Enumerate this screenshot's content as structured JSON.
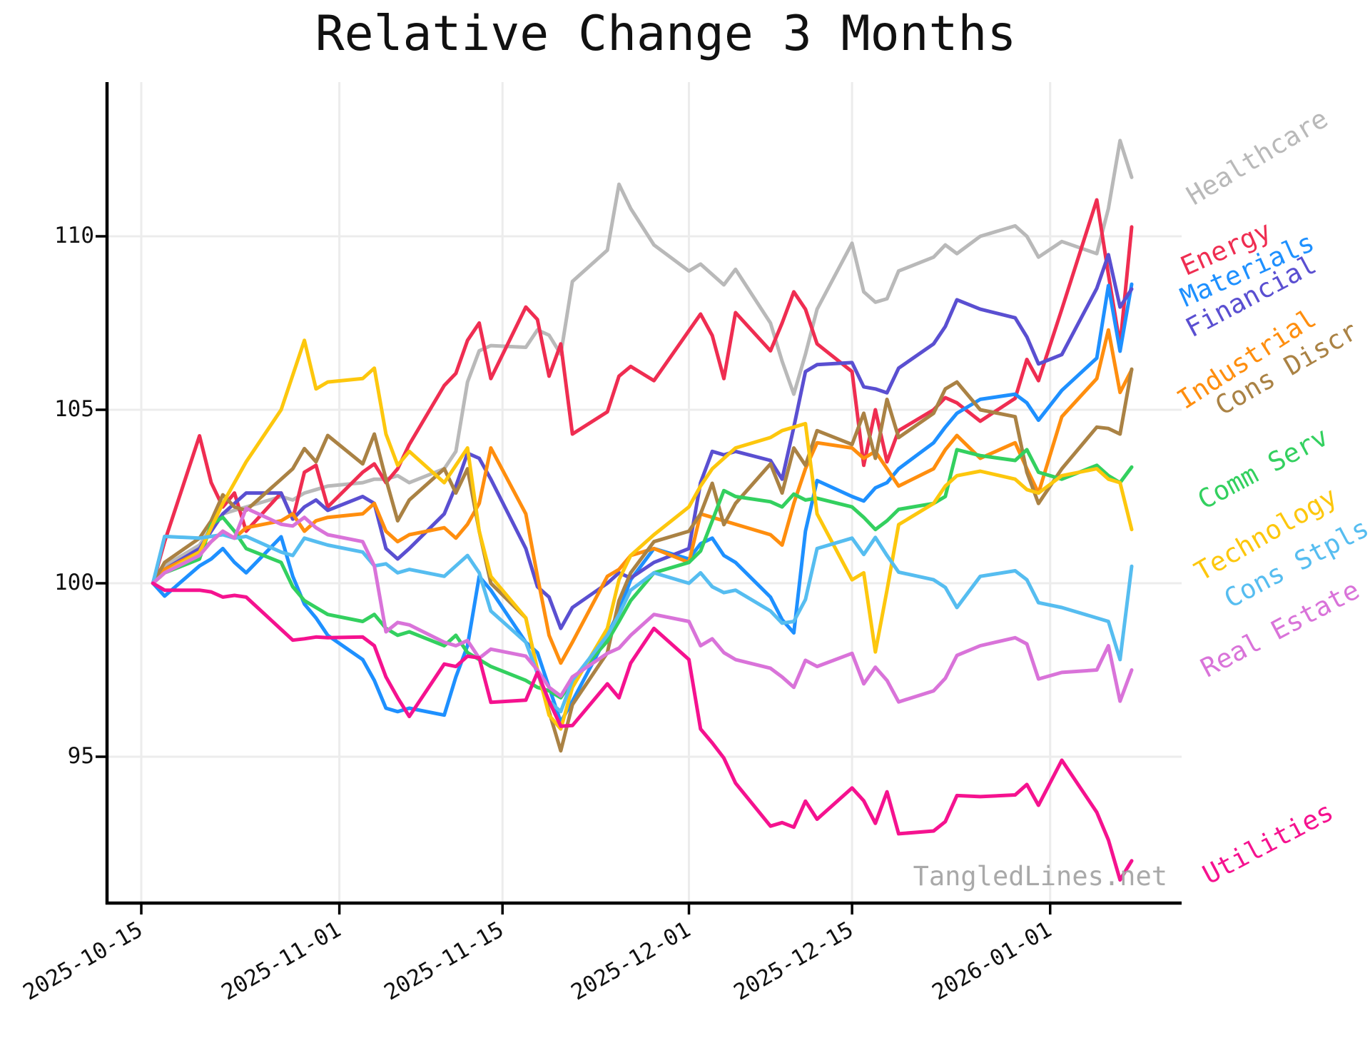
{
  "title": "Relative Change 3 Months",
  "watermark": "TangledLines.net",
  "chart_data": {
    "type": "line",
    "title": "Relative Change 3 Months",
    "xlabel": "",
    "ylabel": "",
    "grid": true,
    "legend_position": "right-rotated-labels-at-line-ends",
    "x_tick_labels": [
      "2025-10-15",
      "2025-11-01",
      "2025-11-15",
      "2025-12-01",
      "2025-12-15",
      "2026-01-01"
    ],
    "y_ticks": [
      95,
      100,
      105,
      110
    ],
    "xlim": [
      "2025-10-12",
      "2026-01-13"
    ],
    "ylim": [
      90.8,
      114.4
    ],
    "baseline_value": 100,
    "dates": [
      "2025-10-16",
      "2025-10-17",
      "2025-10-20",
      "2025-10-21",
      "2025-10-22",
      "2025-10-23",
      "2025-10-24",
      "2025-10-27",
      "2025-10-28",
      "2025-10-29",
      "2025-10-30",
      "2025-10-31",
      "2025-11-03",
      "2025-11-04",
      "2025-11-05",
      "2025-11-06",
      "2025-11-07",
      "2025-11-10",
      "2025-11-11",
      "2025-11-12",
      "2025-11-13",
      "2025-11-14",
      "2025-11-17",
      "2025-11-18",
      "2025-11-19",
      "2025-11-20",
      "2025-11-21",
      "2025-11-24",
      "2025-11-25",
      "2025-11-26",
      "2025-11-28",
      "2025-12-01",
      "2025-12-02",
      "2025-12-03",
      "2025-12-04",
      "2025-12-05",
      "2025-12-08",
      "2025-12-09",
      "2025-12-10",
      "2025-12-11",
      "2025-12-12",
      "2025-12-15",
      "2025-12-16",
      "2025-12-17",
      "2025-12-18",
      "2025-12-19",
      "2025-12-22",
      "2025-12-23",
      "2025-12-24",
      "2025-12-26",
      "2025-12-29",
      "2025-12-30",
      "2025-12-31",
      "2026-01-02",
      "2026-01-05",
      "2026-01-06",
      "2026-01-07",
      "2026-01-08"
    ],
    "series": [
      {
        "name": "healthcare",
        "label": "Healthcare",
        "color": "#b9b9b9",
        "values": [
          100,
          100.5,
          101.1,
          101.6,
          102.0,
          102.1,
          102.2,
          102.5,
          102.4,
          102.6,
          102.7,
          102.8,
          102.9,
          103.0,
          103.0,
          103.1,
          102.9,
          103.3,
          103.8,
          105.8,
          106.7,
          106.85,
          106.8,
          107.3,
          107.15,
          106.6,
          108.7,
          109.6,
          111.5,
          110.8,
          109.75,
          109.0,
          109.2,
          108.9,
          108.6,
          109.05,
          107.5,
          106.4,
          105.45,
          106.6,
          107.9,
          109.8,
          108.4,
          108.1,
          108.2,
          109.0,
          109.4,
          109.75,
          109.5,
          110.0,
          110.3,
          110.0,
          109.4,
          109.85,
          109.5,
          110.8,
          112.76,
          111.7
        ]
      },
      {
        "name": "energy",
        "label": "Energy",
        "color": "#ef2d51",
        "values": [
          100,
          101.2,
          104.25,
          102.9,
          102.2,
          102.6,
          101.5,
          102.6,
          101.85,
          103.2,
          103.4,
          102.2,
          103.2,
          103.44,
          102.9,
          103.3,
          104.0,
          105.7,
          106.05,
          107.0,
          107.5,
          105.9,
          107.96,
          107.6,
          105.97,
          106.9,
          104.3,
          104.94,
          105.97,
          106.25,
          105.84,
          107.28,
          107.76,
          107.14,
          105.9,
          107.8,
          106.7,
          107.5,
          108.4,
          107.9,
          106.9,
          106.1,
          103.4,
          105.0,
          103.5,
          104.4,
          105.0,
          105.35,
          105.2,
          104.67,
          105.33,
          106.45,
          105.84,
          107.9,
          111.05,
          108.9,
          106.86,
          110.27
        ]
      },
      {
        "name": "materials",
        "label": "Materials",
        "color": "#1e90ff",
        "values": [
          100,
          99.63,
          100.5,
          100.7,
          101.0,
          100.6,
          100.3,
          101.34,
          100.2,
          99.4,
          99.0,
          98.5,
          97.8,
          97.2,
          96.4,
          96.3,
          96.4,
          96.2,
          97.3,
          98.2,
          100.2,
          99.8,
          98.3,
          98.0,
          97.0,
          96.0,
          96.6,
          98.5,
          99.2,
          100.1,
          101.0,
          100.7,
          101.14,
          101.3,
          100.8,
          100.6,
          99.6,
          98.95,
          98.57,
          101.5,
          102.96,
          102.5,
          102.37,
          102.75,
          102.9,
          103.3,
          104.05,
          104.5,
          104.9,
          105.3,
          105.45,
          105.2,
          104.7,
          105.56,
          106.49,
          108.58,
          106.69,
          108.62
        ]
      },
      {
        "name": "financial",
        "label": "Financial",
        "color": "#5a4fd1",
        "values": [
          100,
          100.4,
          101.0,
          101.5,
          102.0,
          102.3,
          102.6,
          102.6,
          101.85,
          102.2,
          102.4,
          102.1,
          102.5,
          102.3,
          101.0,
          100.7,
          101.0,
          102.0,
          102.8,
          103.75,
          103.6,
          103.0,
          101.0,
          99.9,
          99.6,
          98.7,
          99.3,
          100.0,
          100.3,
          100.15,
          100.6,
          101.0,
          102.9,
          103.8,
          103.7,
          103.8,
          103.54,
          103.0,
          104.5,
          106.1,
          106.3,
          106.36,
          105.66,
          105.6,
          105.49,
          106.2,
          106.9,
          107.4,
          108.17,
          107.9,
          107.65,
          107.1,
          106.32,
          106.59,
          108.5,
          109.47,
          107.96,
          108.48
        ]
      },
      {
        "name": "industrial",
        "label": "Industrial",
        "color": "#ff8e0e",
        "values": [
          100,
          100.4,
          100.9,
          101.2,
          101.5,
          101.3,
          101.6,
          101.8,
          102.0,
          101.5,
          101.8,
          101.9,
          102.0,
          102.3,
          101.5,
          101.2,
          101.4,
          101.6,
          101.3,
          101.7,
          102.3,
          103.9,
          102.0,
          100.2,
          98.5,
          97.7,
          98.3,
          100.2,
          100.4,
          100.8,
          101.0,
          100.6,
          102.0,
          101.9,
          101.8,
          101.7,
          101.4,
          101.1,
          102.3,
          103.3,
          104.05,
          103.9,
          103.6,
          103.8,
          103.3,
          102.8,
          103.3,
          103.85,
          104.26,
          103.6,
          104.05,
          103.3,
          102.6,
          104.8,
          105.9,
          107.3,
          105.5,
          106.15
        ]
      },
      {
        "name": "cons-discr",
        "label": "Cons Discr",
        "color": "#aa8244",
        "values": [
          100,
          100.6,
          101.3,
          101.8,
          102.55,
          102.2,
          102.1,
          103.0,
          103.3,
          103.88,
          103.5,
          104.26,
          103.44,
          104.3,
          103.0,
          101.8,
          102.4,
          103.3,
          102.6,
          103.3,
          101.5,
          100.0,
          99.0,
          97.5,
          96.3,
          95.17,
          96.5,
          98.0,
          99.5,
          100.3,
          101.2,
          101.5,
          102.0,
          102.88,
          101.69,
          102.3,
          103.44,
          102.6,
          103.9,
          103.4,
          104.4,
          104.0,
          104.9,
          103.6,
          105.3,
          104.2,
          104.9,
          105.6,
          105.8,
          105.0,
          104.8,
          103.2,
          102.3,
          103.3,
          104.5,
          104.46,
          104.3,
          106.17
        ]
      },
      {
        "name": "comm-serv",
        "label": "Comm Serv",
        "color": "#33d05f",
        "values": [
          100,
          100.3,
          100.7,
          101.7,
          101.9,
          101.5,
          101.0,
          100.6,
          99.9,
          99.5,
          99.3,
          99.1,
          98.9,
          99.1,
          98.7,
          98.5,
          98.6,
          98.2,
          98.5,
          98.0,
          97.8,
          97.6,
          97.2,
          97.0,
          96.9,
          96.7,
          97.2,
          98.33,
          98.9,
          99.5,
          100.3,
          100.6,
          100.93,
          101.8,
          102.67,
          102.5,
          102.35,
          102.2,
          102.57,
          102.4,
          102.45,
          102.2,
          101.9,
          101.55,
          101.8,
          102.13,
          102.3,
          102.5,
          103.85,
          103.68,
          103.54,
          103.85,
          103.2,
          103.0,
          103.4,
          103.1,
          102.9,
          103.35
        ]
      },
      {
        "name": "technology",
        "label": "Technology",
        "color": "#fdc70d",
        "values": [
          100,
          100.3,
          100.9,
          101.6,
          102.3,
          102.9,
          103.5,
          105.0,
          106.0,
          107.0,
          105.6,
          105.8,
          105.9,
          106.2,
          104.3,
          103.4,
          103.8,
          102.9,
          103.4,
          103.9,
          101.5,
          100.2,
          99.0,
          97.5,
          96.2,
          95.8,
          97.0,
          98.7,
          100.1,
          100.8,
          101.4,
          102.2,
          102.8,
          103.3,
          103.6,
          103.9,
          104.2,
          104.4,
          104.5,
          104.6,
          102.0,
          100.1,
          100.3,
          98.02,
          99.8,
          101.69,
          102.3,
          102.8,
          103.1,
          103.23,
          103.0,
          102.7,
          102.6,
          103.1,
          103.3,
          103.0,
          102.9,
          101.55
        ]
      },
      {
        "name": "cons-stpls",
        "label": "Cons Stpls",
        "color": "#56bdf0",
        "values": [
          100,
          101.35,
          101.3,
          101.35,
          101.4,
          101.3,
          101.35,
          100.9,
          100.8,
          101.3,
          101.2,
          101.1,
          100.9,
          100.5,
          100.56,
          100.3,
          100.4,
          100.2,
          100.5,
          100.8,
          100.3,
          99.2,
          98.3,
          97.4,
          96.6,
          96.3,
          97.2,
          98.5,
          99.1,
          99.8,
          100.3,
          100.0,
          100.3,
          99.9,
          99.73,
          99.8,
          99.2,
          98.85,
          98.9,
          99.53,
          101.0,
          101.3,
          100.83,
          101.32,
          100.8,
          100.32,
          100.1,
          99.88,
          99.3,
          100.2,
          100.36,
          100.1,
          99.44,
          99.3,
          99.0,
          98.9,
          97.8,
          100.49
        ]
      },
      {
        "name": "real-estate",
        "label": "Real Estate",
        "color": "#d973d9",
        "values": [
          100,
          100.3,
          100.8,
          101.2,
          101.5,
          101.3,
          102.16,
          101.7,
          101.65,
          101.9,
          101.6,
          101.4,
          101.2,
          100.5,
          98.6,
          98.87,
          98.8,
          98.3,
          98.2,
          98.35,
          97.84,
          98.1,
          97.9,
          97.5,
          97.0,
          96.75,
          97.3,
          97.98,
          98.13,
          98.5,
          99.1,
          98.9,
          98.2,
          98.4,
          98.0,
          97.8,
          97.55,
          97.3,
          97.0,
          97.78,
          97.6,
          97.98,
          97.1,
          97.58,
          97.2,
          96.58,
          96.9,
          97.26,
          97.92,
          98.2,
          98.43,
          98.25,
          97.24,
          97.43,
          97.5,
          98.2,
          96.6,
          97.5
        ]
      },
      {
        "name": "utilities",
        "label": "Utilities",
        "color": "#f5128f",
        "values": [
          100,
          99.8,
          99.8,
          99.75,
          99.6,
          99.65,
          99.6,
          98.67,
          98.36,
          98.4,
          98.45,
          98.43,
          98.45,
          98.2,
          97.3,
          96.7,
          96.16,
          97.67,
          97.6,
          97.9,
          97.85,
          96.57,
          96.63,
          97.43,
          96.6,
          95.88,
          95.9,
          97.1,
          96.7,
          97.7,
          98.7,
          97.8,
          95.8,
          95.4,
          94.96,
          94.24,
          93.0,
          93.1,
          92.97,
          93.72,
          93.2,
          94.1,
          93.73,
          93.08,
          93.99,
          92.78,
          92.86,
          93.13,
          93.88,
          93.85,
          93.9,
          94.2,
          93.6,
          94.9,
          93.4,
          92.6,
          91.45,
          92.0
        ]
      }
    ]
  }
}
